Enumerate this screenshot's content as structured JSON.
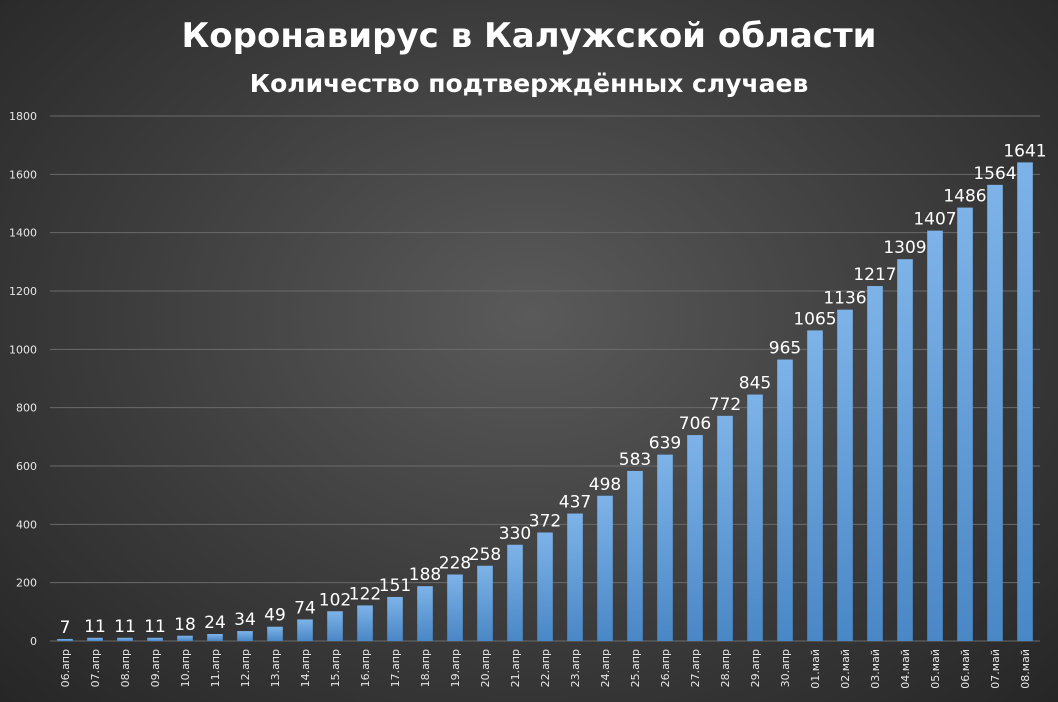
{
  "chart_data": {
    "type": "bar",
    "title": "Коронавирус в Калужской области",
    "subtitle": "Количество подтверждённых случаев",
    "xlabel": "",
    "ylabel": "",
    "ylim": [
      0,
      1800
    ],
    "yticks": [
      0,
      200,
      400,
      600,
      800,
      1000,
      1200,
      1400,
      1600,
      1800
    ],
    "grid": true,
    "legend": "none",
    "bar_color": "#5b9bd5",
    "categories": [
      "06.апр",
      "07.апр",
      "08.апр",
      "09.апр",
      "10.апр",
      "11.апр",
      "12.апр",
      "13.апр",
      "14.апр",
      "15.апр",
      "16.апр",
      "17.апр",
      "18.апр",
      "19.апр",
      "20.апр",
      "21.апр",
      "22.апр",
      "23.апр",
      "24.апр",
      "25.апр",
      "26.апр",
      "27.апр",
      "28.апр",
      "29.апр",
      "30.апр",
      "01.май",
      "02.май",
      "03.май",
      "04.май",
      "05.май",
      "06.май",
      "07.май",
      "08.май"
    ],
    "values": [
      7,
      11,
      11,
      11,
      18,
      24,
      34,
      49,
      74,
      102,
      122,
      151,
      188,
      228,
      258,
      330,
      372,
      437,
      498,
      583,
      639,
      706,
      772,
      845,
      965,
      1065,
      1136,
      1217,
      1309,
      1407,
      1486,
      1564,
      1641
    ]
  }
}
